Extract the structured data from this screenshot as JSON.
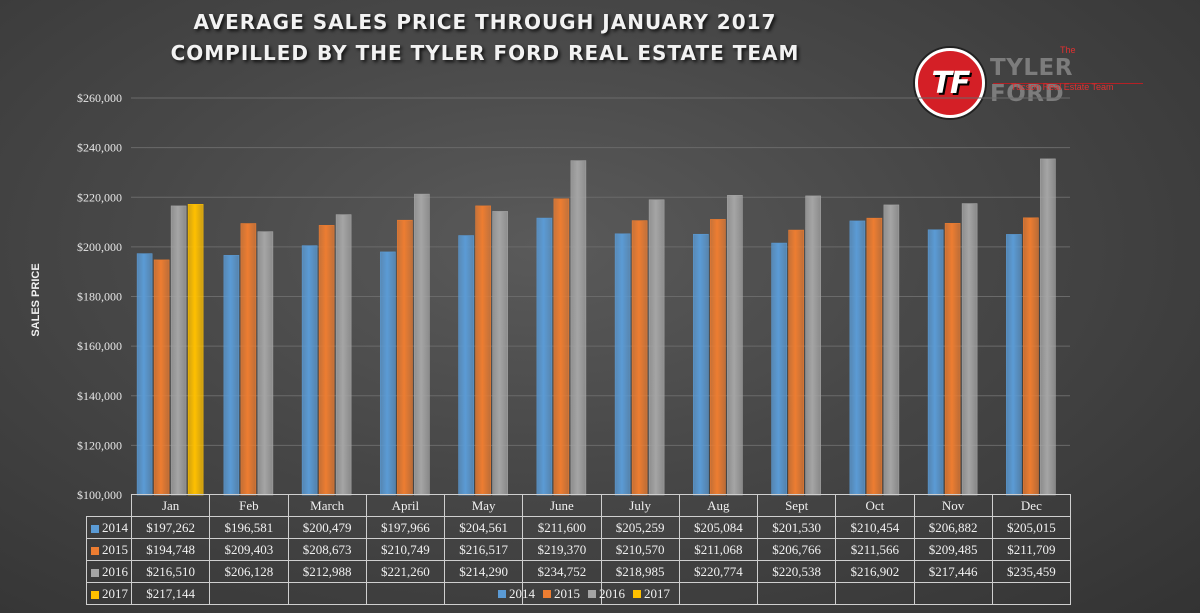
{
  "title_line1": "AVERAGE SALES PRICE THROUGH JANUARY 2017",
  "title_line2": "COMPILLED BY THE TYLER FORD REAL ESTATE TEAM",
  "logo": {
    "mark": "TF",
    "the": "The",
    "name": "TYLER FORD",
    "tagline": "Tucson Real Estate Team"
  },
  "colors": {
    "2014": "#5b9bd5",
    "2015": "#ed7d31",
    "2016": "#a5a5a5",
    "2017": "#ffc000",
    "gridline": "#6a6a6a"
  },
  "chart_data": {
    "type": "bar",
    "categories": [
      "Jan",
      "Feb",
      "March",
      "April",
      "May",
      "June",
      "July",
      "Aug",
      "Sept",
      "Oct",
      "Nov",
      "Dec"
    ],
    "series": [
      {
        "name": "2014",
        "values": [
          197262,
          196581,
          200479,
          197966,
          204561,
          211600,
          205259,
          205084,
          201530,
          210454,
          206882,
          205015
        ],
        "labels": [
          "$197,262",
          "$196,581",
          "$200,479",
          "$197,966",
          "$204,561",
          "$211,600",
          "$205,259",
          "$205,084",
          "$201,530",
          "$210,454",
          "$206,882",
          "$205,015"
        ]
      },
      {
        "name": "2015",
        "values": [
          194748,
          209403,
          208673,
          210749,
          216517,
          219370,
          210570,
          211068,
          206766,
          211566,
          209485,
          211709
        ],
        "labels": [
          "$194,748",
          "$209,403",
          "$208,673",
          "$210,749",
          "$216,517",
          "$219,370",
          "$210,570",
          "$211,068",
          "$206,766",
          "$211,566",
          "$209,485",
          "$211,709"
        ]
      },
      {
        "name": "2016",
        "values": [
          216510,
          206128,
          212988,
          221260,
          214290,
          234752,
          218985,
          220774,
          220538,
          216902,
          217446,
          235459
        ],
        "labels": [
          "$216,510",
          "$206,128",
          "$212,988",
          "$221,260",
          "$214,290",
          "$234,752",
          "$218,985",
          "$220,774",
          "$220,538",
          "$216,902",
          "$217,446",
          "$235,459"
        ]
      },
      {
        "name": "2017",
        "values": [
          217144,
          null,
          null,
          null,
          null,
          null,
          null,
          null,
          null,
          null,
          null,
          null
        ],
        "labels": [
          "$217,144",
          "",
          "",
          "",
          "",
          "",
          "",
          "",
          "",
          "",
          "",
          ""
        ]
      }
    ],
    "ylabel": "SALES PRICE",
    "ylim": [
      100000,
      260000
    ],
    "yticks": [
      100000,
      120000,
      140000,
      160000,
      180000,
      200000,
      220000,
      240000,
      260000
    ],
    "ytick_labels": [
      "$100,000",
      "$120,000",
      "$140,000",
      "$160,000",
      "$180,000",
      "$200,000",
      "$220,000",
      "$240,000",
      "$260,000"
    ],
    "grid": true,
    "legend": "bottom",
    "data_table": true
  }
}
